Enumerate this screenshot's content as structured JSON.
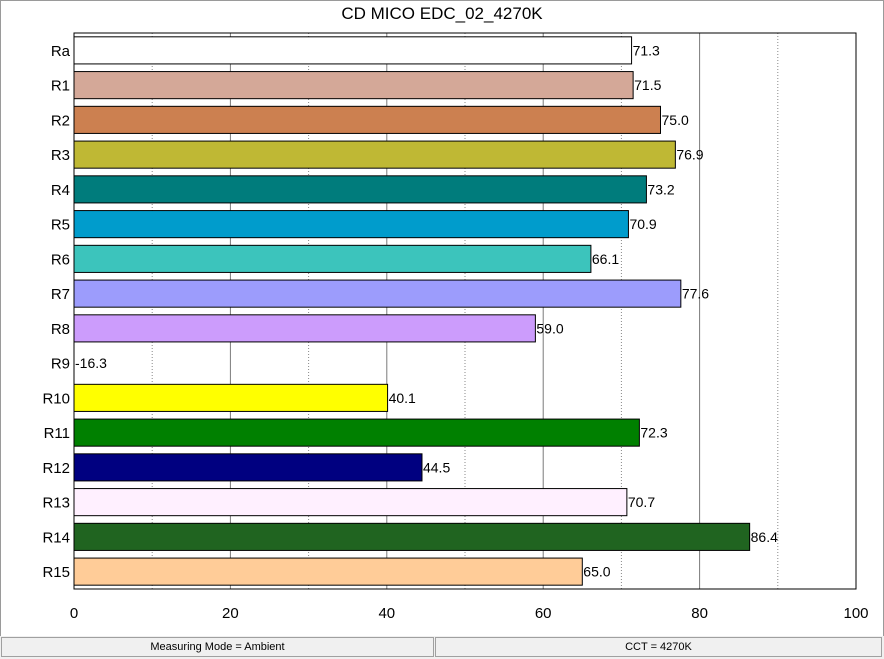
{
  "chart_data": {
    "type": "bar",
    "orientation": "horizontal",
    "title": "CD MICO EDC_02_4270K",
    "xlabel": "",
    "ylabel": "",
    "xlim": [
      0,
      100
    ],
    "x_ticks": [
      0,
      20,
      40,
      60,
      80,
      100
    ],
    "grid": "vertical solid lines every 20, dotted lines between",
    "legend": "none",
    "categories": [
      "Ra",
      "R1",
      "R2",
      "R3",
      "R4",
      "R5",
      "R6",
      "R7",
      "R8",
      "R9",
      "R10",
      "R11",
      "R12",
      "R13",
      "R14",
      "R15"
    ],
    "values": [
      71.3,
      71.5,
      75.0,
      76.9,
      73.2,
      70.9,
      66.1,
      77.6,
      59.0,
      -16.3,
      40.1,
      72.3,
      44.5,
      70.7,
      86.4,
      65.0
    ],
    "value_labels": [
      "71.3",
      "71.5",
      "75.0",
      "76.9",
      "73.2",
      "70.9",
      "66.1",
      "77.6",
      "59.0",
      "-16.3",
      "40.1",
      "72.3",
      "44.5",
      "70.7",
      "86.4",
      "65.0"
    ],
    "colors": [
      "#ffffff",
      "#d4a898",
      "#cc8050",
      "#bfb834",
      "#007c7c",
      "#009ccc",
      "#3cc4bc",
      "#9c9cfc",
      "#cc9cfc",
      "#ffffff",
      "#ffff00",
      "#008000",
      "#000080",
      "#fff0ff",
      "#206420",
      "#ffcc98"
    ]
  },
  "status": {
    "mode": "Measuring Mode = Ambient",
    "cct": "CCT = 4270K"
  }
}
